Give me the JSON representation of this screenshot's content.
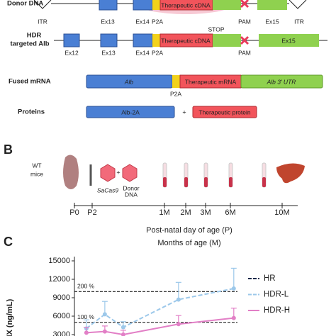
{
  "panel_a": {
    "donor_label": "Donor DNA",
    "donor": {
      "itr_left": "ITR",
      "ex13": "Ex13",
      "ex14": "Ex14",
      "p2a": "P2A",
      "cdna": "Therapeutic cDNA",
      "pam": "PAM",
      "ex15": "Ex15",
      "itr_right": "ITR"
    },
    "hdr_label": [
      "HDR",
      "targeted Alb"
    ],
    "hdr": {
      "ex12": "Ex12",
      "ex13": "Ex13",
      "ex14": "Ex14",
      "p2a": "P2A",
      "cdna": "Therapeutic cDNA",
      "stop": "STOP",
      "pam": "PAM",
      "ex15": "Ex15"
    },
    "mrna_label": "Fused mRNA",
    "mrna": {
      "alb": "Alb",
      "p2a": "P2A",
      "therapeutic": "Therapeutic mRNA",
      "utr": "Alb 3' UTR"
    },
    "protein_label": "Proteins",
    "proteins": {
      "alb2a": "Alb-2A",
      "plus": "+",
      "therapeutic": "Therapeutic protein"
    }
  },
  "panel_b": {
    "letter": "B",
    "mice": [
      "WT",
      "mice"
    ],
    "cas9": "SaCas9",
    "plus": "+",
    "donor": [
      "Donor",
      "DNA"
    ],
    "timepoints": [
      "P0",
      "P2",
      "1M",
      "2M",
      "3M",
      "6M",
      "10M"
    ],
    "xlabel1": "Post-natal day of age (P)",
    "xlabel2": "Months of age (M)"
  },
  "chart_data": {
    "type": "line",
    "letter": "C",
    "ylabel": "FIX (ng/mL)",
    "x": [
      0,
      1,
      2,
      5,
      8
    ],
    "xlim": [
      -0.65,
      8.2
    ],
    "ylim": [
      3000,
      15000
    ],
    "yticks": [
      3000,
      6000,
      9000,
      12000,
      15000
    ],
    "reference_lines": [
      {
        "value": 10000,
        "label": "200 %"
      },
      {
        "value": 5000,
        "label": "100 %"
      }
    ],
    "series": [
      {
        "name": "HR",
        "color": "#1b2a4a",
        "dashed": true
      },
      {
        "name": "HDR-L",
        "color": "#9cc8ea",
        "dashed": true,
        "values": [
          4000,
          6300,
          4200,
          8700,
          10500
        ],
        "errors": [
          1400,
          2100,
          900,
          2800,
          3300
        ]
      },
      {
        "name": "HDR-H",
        "color": "#e27fc6",
        "dashed": false,
        "values": [
          3300,
          3500,
          3000,
          4700,
          5700
        ],
        "errors": [
          900,
          900,
          700,
          1400,
          1600
        ]
      }
    ]
  }
}
